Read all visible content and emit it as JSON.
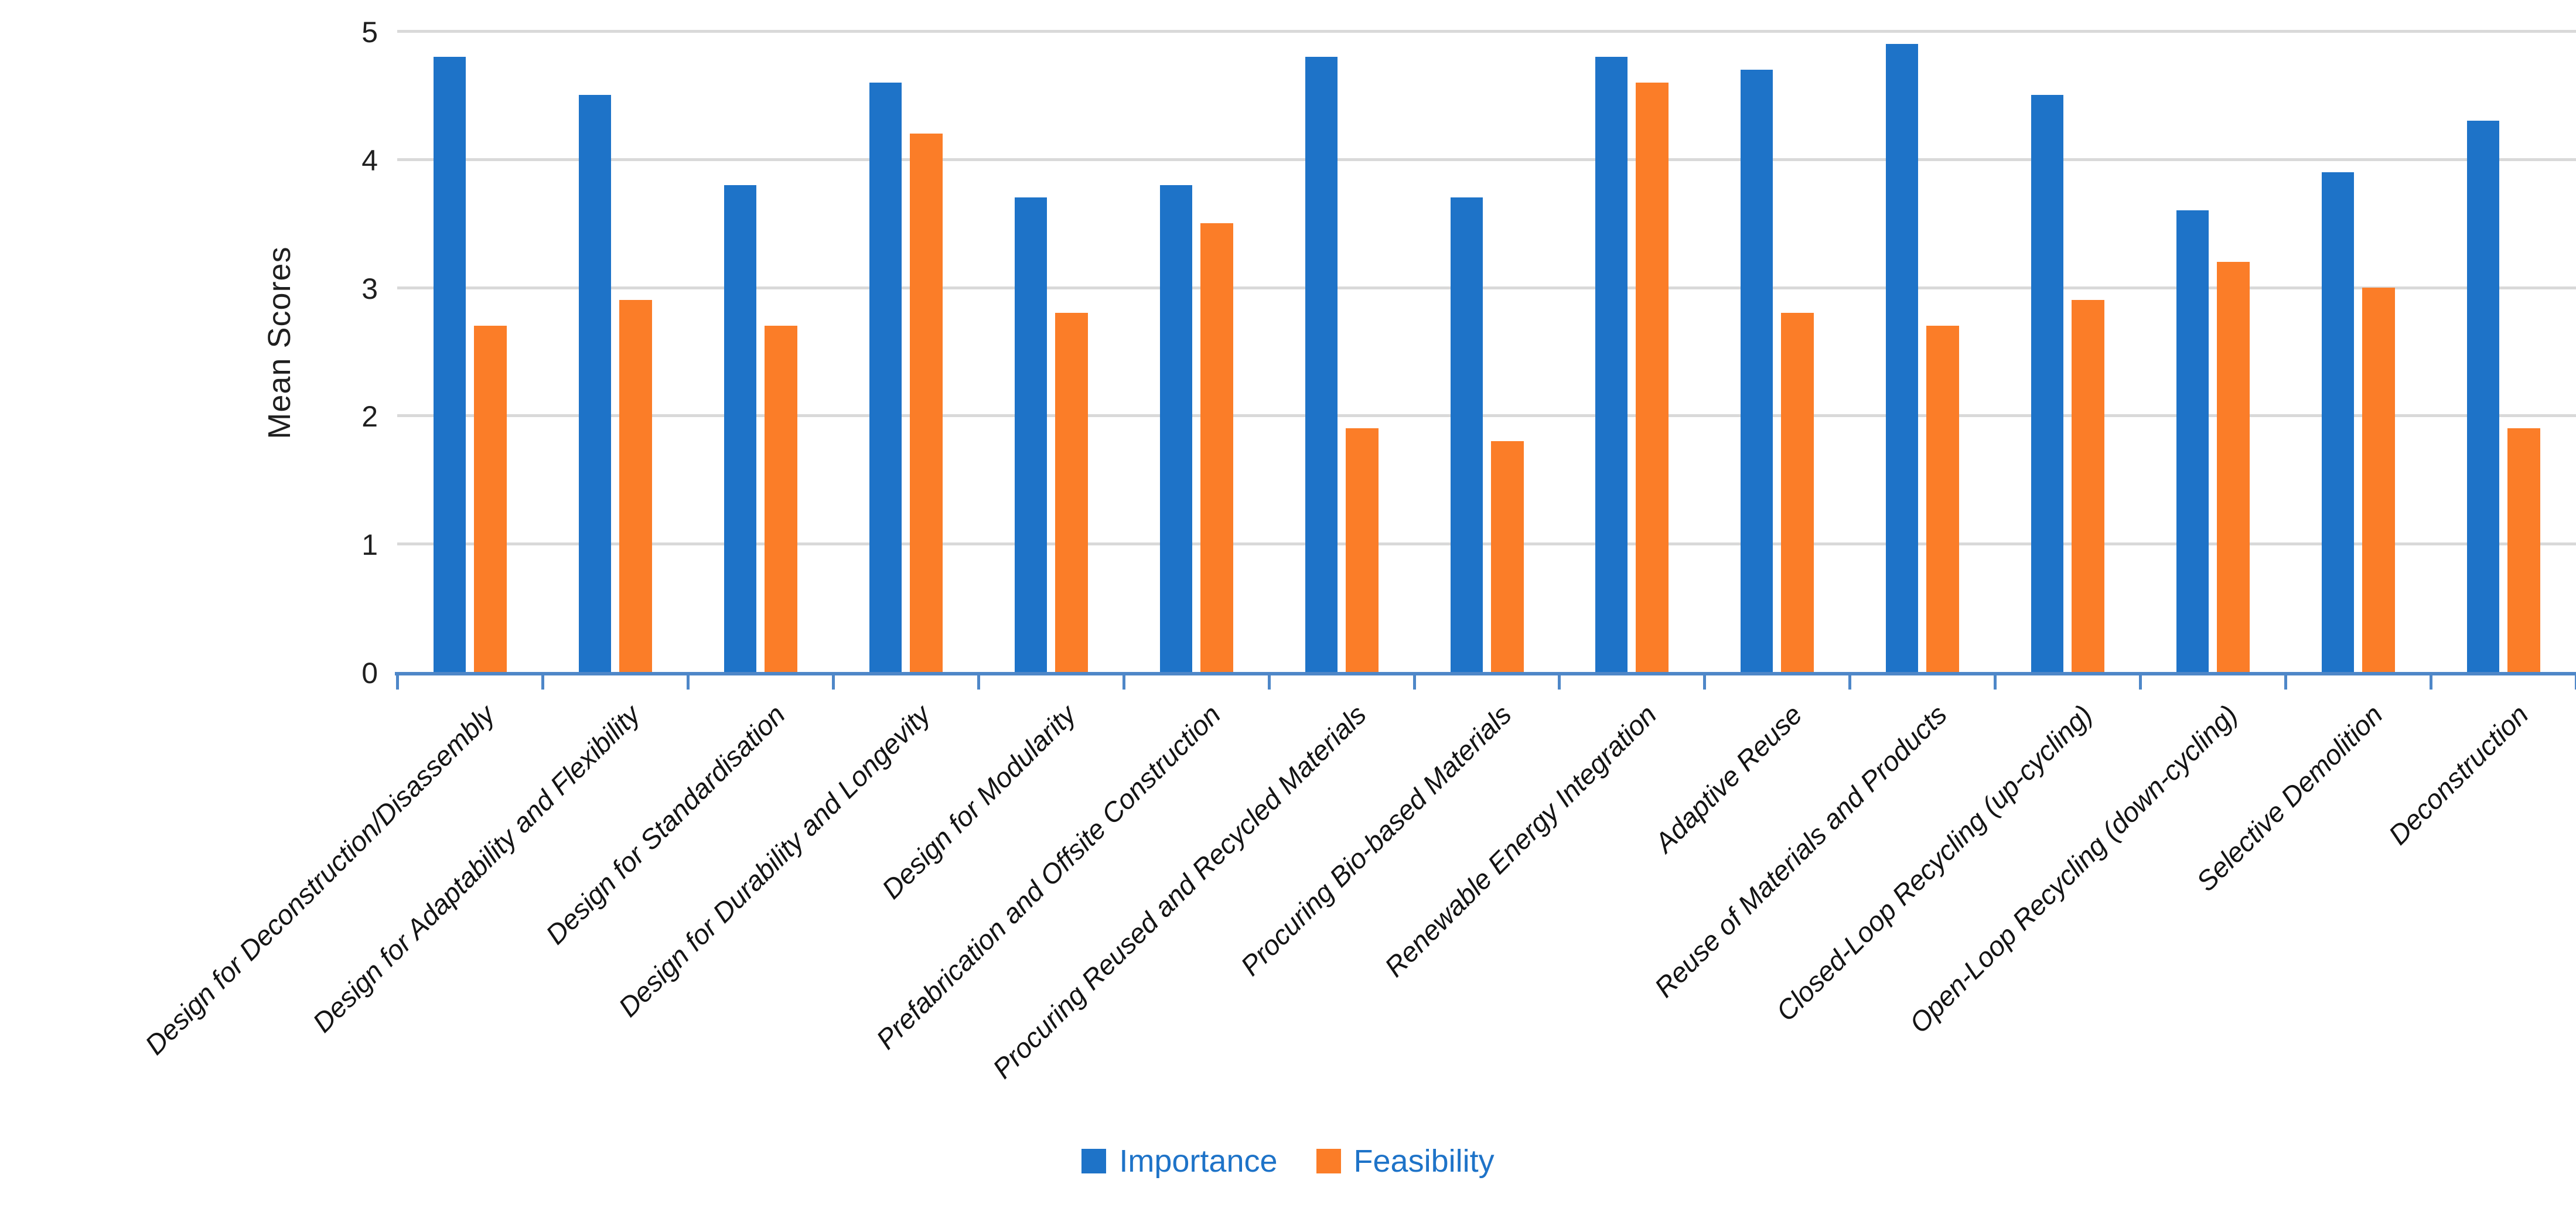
{
  "chart_data": {
    "type": "bar",
    "title": "",
    "xlabel": "",
    "ylabel": "Mean Scores",
    "ylim": [
      0,
      5
    ],
    "yticks": [
      0,
      1,
      2,
      3,
      4,
      5
    ],
    "grid": "horizontal gridlines at integer values",
    "legend_position": "bottom-center",
    "categories": [
      "Design for Deconstruction/Disassembly",
      "Design for Adaptability and Flexibility",
      "Design for Standardisation",
      "Design for Durability and Longevity",
      "Design for Modularity",
      "Prefabrication and Offsite Construction",
      "Procuring Reused and Recycled Materials",
      "Procuring Bio-based Materials",
      "Renewable Energy Integration",
      "Adaptive Reuse",
      "Reuse of Materials and Products",
      "Closed-Loop Recycling (up-cycling)",
      "Open-Loop Recycling (down-cycling)",
      "Selective Demolition",
      "Deconstruction"
    ],
    "series": [
      {
        "name": "Importance",
        "color": "#1e73c8",
        "values": [
          4.8,
          4.5,
          3.8,
          4.6,
          3.7,
          3.8,
          4.8,
          3.7,
          4.8,
          4.7,
          4.9,
          4.5,
          3.6,
          3.9,
          4.3
        ]
      },
      {
        "name": "Feasibility",
        "color": "#fb7d28",
        "values": [
          2.7,
          2.9,
          2.7,
          4.2,
          2.8,
          3.5,
          1.9,
          1.8,
          4.6,
          2.8,
          2.7,
          2.9,
          3.2,
          3.0,
          1.9
        ]
      }
    ],
    "colors": {
      "axis_line": "#4e87c8",
      "gridline": "#d9d9d9",
      "tick_label": "#1f1f1f",
      "category_label": "#141414",
      "legend_text": "#1e73c8",
      "background": "#ffffff"
    }
  }
}
